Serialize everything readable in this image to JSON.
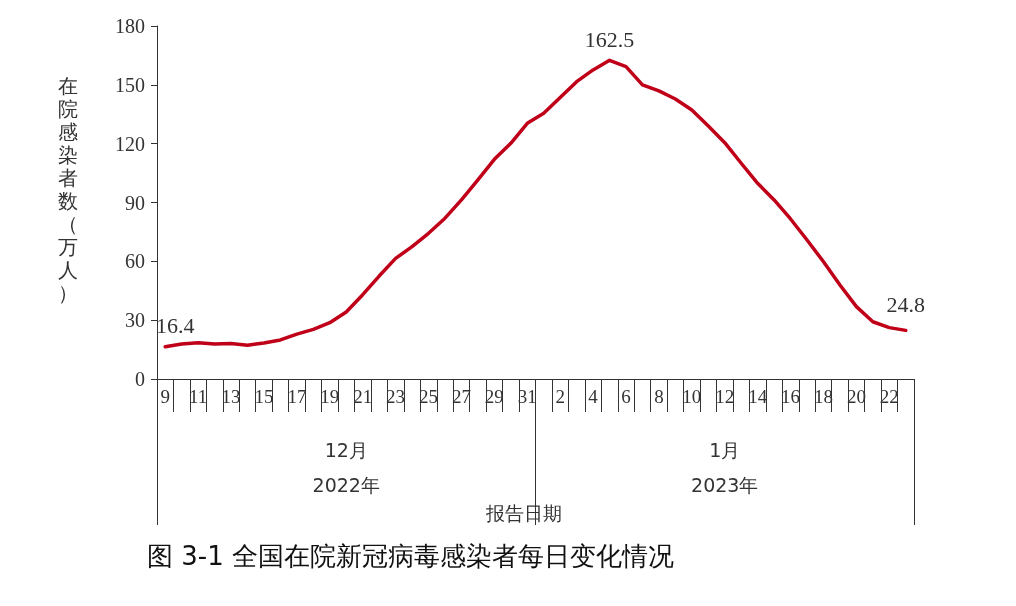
{
  "chart_data": {
    "type": "line",
    "title": "图 3-1 全国在院新冠病毒感染者每日变化情况",
    "xlabel": "报告日期",
    "ylabel": "在院感染者数（万人）",
    "categories": [
      "9",
      null,
      "11",
      null,
      "13",
      null,
      "15",
      null,
      "17",
      null,
      "19",
      null,
      "21",
      null,
      "23",
      null,
      "25",
      null,
      "27",
      null,
      "29",
      null,
      "31",
      null,
      "2",
      null,
      "4",
      null,
      "6",
      null,
      "8",
      null,
      "10",
      null,
      "12",
      null,
      "14",
      null,
      "16",
      null,
      "18",
      null,
      "20",
      null,
      "22",
      null
    ],
    "series": [
      {
        "color": "#c00018",
        "values": [
          16.4,
          17.8,
          18.5,
          17.8,
          18.1,
          17.2,
          18.4,
          19.9,
          22.9,
          25.3,
          28.7,
          34.2,
          43,
          52.5,
          61.5,
          67.5,
          74.3,
          82,
          91.3,
          101.5,
          112,
          120.2,
          130.4,
          135.5,
          143.6,
          151.6,
          157.6,
          162.5,
          159.3,
          150,
          146.9,
          142.8,
          137.2,
          129,
          120.5,
          110,
          99.8,
          91.3,
          81.6,
          70.9,
          59.8,
          47.9,
          36.9,
          29.2,
          26.2,
          24.8
        ],
        "value_labels": [
          "16.4",
          null,
          null,
          null,
          null,
          null,
          null,
          null,
          null,
          null,
          null,
          null,
          null,
          null,
          null,
          null,
          null,
          null,
          null,
          null,
          null,
          null,
          null,
          null,
          null,
          null,
          null,
          "162.5",
          null,
          null,
          null,
          null,
          null,
          null,
          null,
          null,
          null,
          null,
          null,
          null,
          null,
          null,
          null,
          null,
          null,
          "24.8"
        ]
      }
    ],
    "annotations": [
      "12月",
      "1月",
      "2022年",
      "2023年"
    ],
    "ylim": [
      0,
      180
    ],
    "yticks": [
      0,
      30,
      60,
      90,
      120,
      150,
      180
    ],
    "grid": false,
    "marker": "none",
    "line_style": "solid"
  }
}
